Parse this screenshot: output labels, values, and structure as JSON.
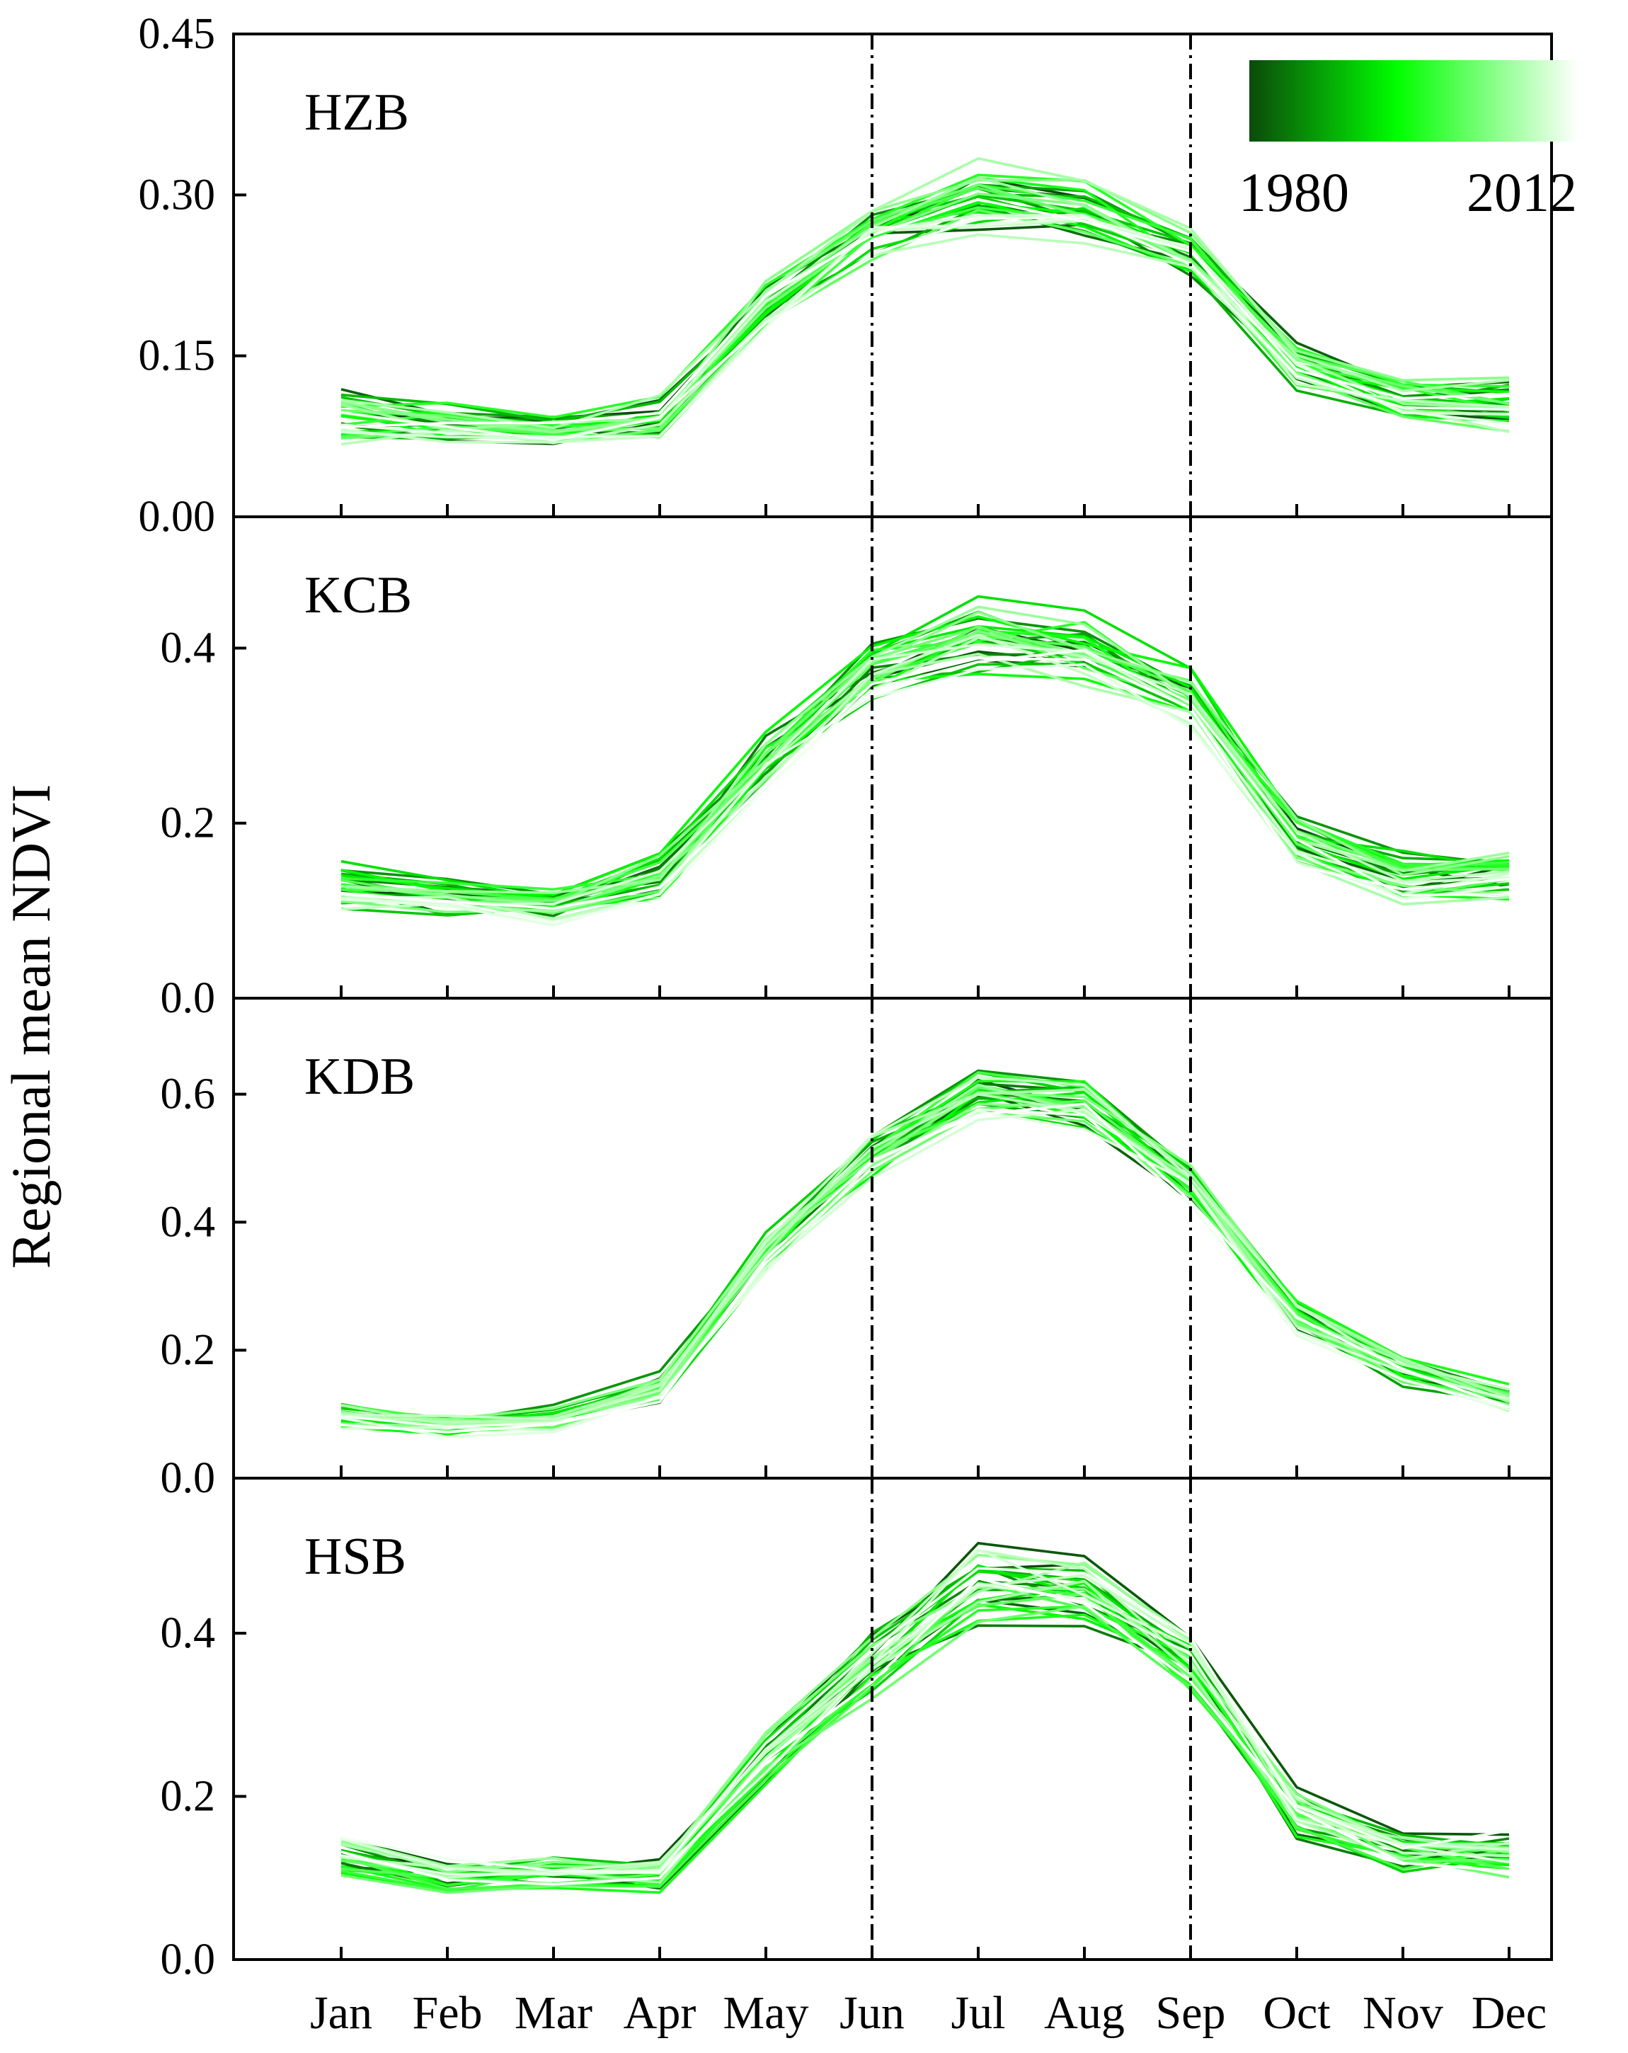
{
  "chart_data": {
    "type": "line",
    "ylabel": "Regional mean NDVI",
    "xlabel": "",
    "categories": [
      "Jan",
      "Feb",
      "Mar",
      "Apr",
      "May",
      "Jun",
      "Jul",
      "Aug",
      "Sep",
      "Oct",
      "Nov",
      "Dec"
    ],
    "reference_lines": [
      "Jun",
      "Sep"
    ],
    "legend": {
      "start_label": "1980",
      "end_label": "2012",
      "colors": [
        "#0b4a0b",
        "#00ff00",
        "#ffffff"
      ],
      "position": "top-right"
    },
    "year_start": 1980,
    "year_end": 2012,
    "panels": [
      {
        "name": "HZB",
        "ylim": [
          0,
          0.45
        ],
        "yticks": [
          0.0,
          0.15,
          0.3,
          0.45
        ],
        "ytick_labels": [
          "0.00",
          "0.15",
          "0.30",
          "0.45"
        ],
        "mean": [
          0.095,
          0.085,
          0.08,
          0.09,
          0.195,
          0.265,
          0.295,
          0.285,
          0.245,
          0.14,
          0.11,
          0.105
        ],
        "spread": [
          0.03,
          0.025,
          0.02,
          0.025,
          0.03,
          0.03,
          0.04,
          0.035,
          0.03,
          0.025,
          0.025,
          0.03
        ]
      },
      {
        "name": "KCB",
        "ylim": [
          0,
          0.55
        ],
        "yticks": [
          0.0,
          0.2,
          0.4
        ],
        "ytick_labels": [
          "0.0",
          "0.2",
          "0.4"
        ],
        "mean": [
          0.125,
          0.11,
          0.105,
          0.135,
          0.27,
          0.37,
          0.41,
          0.395,
          0.34,
          0.18,
          0.135,
          0.14
        ],
        "spread": [
          0.035,
          0.03,
          0.03,
          0.035,
          0.04,
          0.045,
          0.05,
          0.05,
          0.04,
          0.035,
          0.035,
          0.035
        ]
      },
      {
        "name": "KDB",
        "ylim": [
          0,
          0.75
        ],
        "yticks": [
          0.0,
          0.2,
          0.4,
          0.6
        ],
        "ytick_labels": [
          "0.0",
          "0.2",
          "0.4",
          "0.6"
        ],
        "mean": [
          0.1,
          0.085,
          0.095,
          0.14,
          0.36,
          0.51,
          0.605,
          0.59,
          0.465,
          0.255,
          0.17,
          0.13
        ],
        "spread": [
          0.025,
          0.025,
          0.025,
          0.03,
          0.04,
          0.045,
          0.05,
          0.05,
          0.04,
          0.035,
          0.03,
          0.03
        ]
      },
      {
        "name": "HSB",
        "ylim": [
          0,
          0.59
        ],
        "yticks": [
          0.0,
          0.2,
          0.4
        ],
        "ytick_labels": [
          "0.0",
          "0.2",
          "0.4"
        ],
        "mean": [
          0.125,
          0.1,
          0.105,
          0.1,
          0.245,
          0.36,
          0.455,
          0.445,
          0.36,
          0.175,
          0.13,
          0.13
        ],
        "spread": [
          0.03,
          0.025,
          0.025,
          0.025,
          0.04,
          0.05,
          0.06,
          0.055,
          0.05,
          0.04,
          0.035,
          0.035
        ]
      }
    ]
  }
}
